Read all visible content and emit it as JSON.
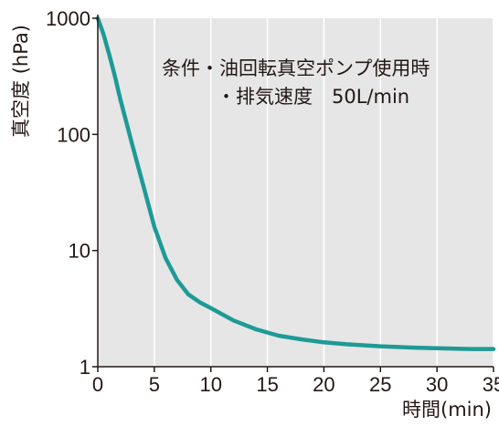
{
  "chart_data": {
    "type": "line",
    "xlabel": "時間(min)",
    "ylabel": "真空度 (hPa)",
    "xlim": [
      0,
      35
    ],
    "ylim": [
      1,
      1000
    ],
    "yscale": "log",
    "x_ticks": [
      0,
      5,
      10,
      15,
      20,
      25,
      30,
      35
    ],
    "x_tick_labels": [
      "0",
      "5",
      "10",
      "15",
      "20",
      "25",
      "30",
      "35"
    ],
    "y_ticks": [
      1,
      10,
      100,
      1000
    ],
    "y_tick_labels": [
      "1",
      "10",
      "100",
      "1000"
    ],
    "grid": "vertical",
    "annotation": [
      "条件・油回転真空ポンプ使用時",
      "・排気速度　50L/min"
    ],
    "series": [
      {
        "color": "#1e9a96",
        "x": [
          0,
          0.5,
          1,
          1.5,
          2,
          3,
          4,
          5,
          6,
          7,
          8,
          9,
          10,
          12,
          14,
          16,
          18,
          20,
          22,
          25,
          28,
          30,
          33,
          35
        ],
        "y": [
          1000,
          730,
          490,
          320,
          200,
          85,
          37,
          16,
          8.6,
          5.6,
          4.2,
          3.6,
          3.2,
          2.5,
          2.1,
          1.85,
          1.72,
          1.62,
          1.56,
          1.5,
          1.46,
          1.44,
          1.42,
          1.42
        ]
      }
    ]
  },
  "colors": {
    "plot_bg": "#e6e6e6",
    "grid": "#ffffff",
    "axis": "#231815",
    "line": "#1e9a96"
  }
}
